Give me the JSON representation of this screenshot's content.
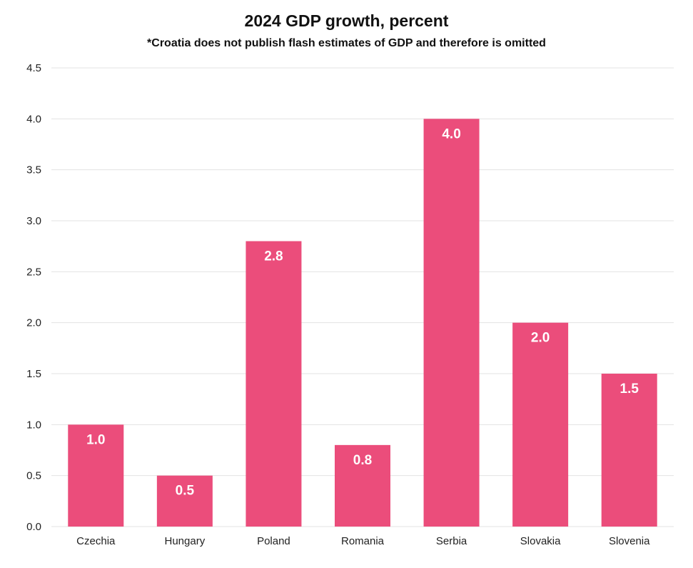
{
  "chart_data": {
    "type": "bar",
    "title": "2024 GDP growth, percent",
    "subtitle": "*Croatia does not publish flash estimates of GDP and therefore is omitted",
    "xlabel": "",
    "ylabel": "",
    "categories": [
      "Czechia",
      "Hungary",
      "Poland",
      "Romania",
      "Serbia",
      "Slovakia",
      "Slovenia"
    ],
    "values": [
      1.0,
      0.5,
      2.8,
      0.8,
      4.0,
      2.0,
      1.5
    ],
    "value_labels": [
      "1.0",
      "0.5",
      "2.8",
      "0.8",
      "4.0",
      "2.0",
      "1.5"
    ],
    "ylim": [
      0,
      4.5
    ],
    "yticks": [
      "0.0",
      "0.5",
      "1.0",
      "1.5",
      "2.0",
      "2.5",
      "3.0",
      "3.5",
      "4.0",
      "4.5"
    ],
    "grid": true,
    "bar_color": "#EB4D7B",
    "grid_color": "#E3E3E3"
  }
}
